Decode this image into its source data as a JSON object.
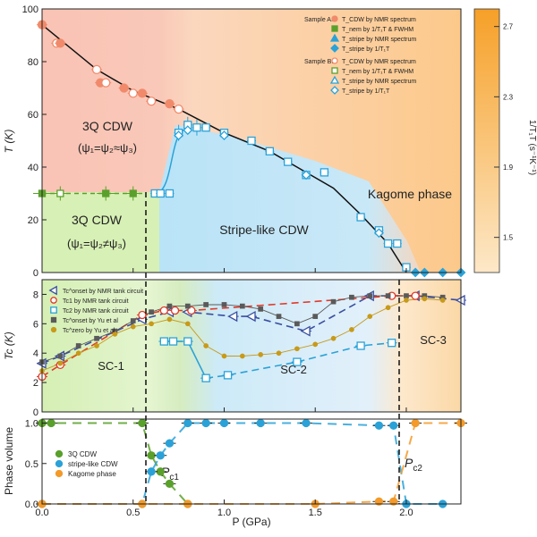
{
  "xaxis": {
    "label": "P (GPa)",
    "ticks": [
      "0.0",
      "0.5",
      "1.0",
      "1.5",
      "2.0"
    ],
    "tick_values": [
      0,
      0.5,
      1.0,
      1.5,
      2.0
    ],
    "range": [
      0,
      2.3
    ]
  },
  "colorbar": {
    "label": "1/T₁T (s⁻¹K⁻¹)",
    "ticks": [
      "2.7",
      "2.3",
      "1.9",
      "1.5"
    ],
    "tick_values": [
      2.7,
      2.3,
      1.9,
      1.5
    ],
    "range": [
      1.3,
      2.8
    ],
    "color_low": "#fde8c8",
    "color_high": "#f6a028"
  },
  "colors": {
    "salmon": "#f08a6a",
    "green": "#5aa02c",
    "blue": "#2aa2d8",
    "orange": "#f39a2a",
    "navy": "#3a4fa0",
    "red": "#e03a2a",
    "gray": "#5a5a5a",
    "gold": "#c79a1a"
  },
  "chart_data": [
    {
      "type": "scatter",
      "panel": "phase-diagram",
      "ylabel": "T (K)",
      "yticks": [
        "0",
        "20",
        "40",
        "60",
        "80",
        "100"
      ],
      "ylim": [
        0,
        100
      ],
      "region_labels": {
        "cdw3q_a": "3Q CDW",
        "cdw3q_a_sub": "(ψ₁=ψ₂≈ψ₃)",
        "cdw3q_b": "3Q CDW",
        "cdw3q_b_sub": "(ψ₁=ψ₂≠ψ₃)",
        "stripe": "Stripe-like CDW",
        "kagome": "Kagome phase"
      },
      "legend": {
        "sample_a": "Sample A:",
        "sample_b": "Sample B:",
        "entries_a": [
          "T_CDW by NMR spectrum",
          "T_nem by 1/T₁T & FWHM",
          "T_stripe by NMR spectrum",
          "T_stripe by 1/T₁T"
        ],
        "entries_b": [
          "T_CDW by NMR spectrum",
          "T_nem by 1/T₁T & FWHM",
          "T_stripe by NMR spectrum",
          "T_stripe by 1/T₁T"
        ]
      },
      "series": [
        {
          "name": "T_CDW",
          "points": [
            [
              0.0,
              94
            ],
            [
              0.08,
              87
            ],
            [
              0.1,
              87
            ],
            [
              0.3,
              77
            ],
            [
              0.32,
              72
            ],
            [
              0.35,
              72
            ],
            [
              0.45,
              70
            ],
            [
              0.5,
              68
            ],
            [
              0.55,
              68
            ],
            [
              0.6,
              65
            ],
            [
              0.7,
              64
            ],
            [
              0.75,
              62
            ]
          ]
        },
        {
          "name": "T_nem",
          "points": [
            [
              0.0,
              30
            ],
            [
              0.1,
              30
            ],
            [
              0.35,
              30
            ],
            [
              0.5,
              30
            ]
          ]
        },
        {
          "name": "T_stripe (spectrum)",
          "points": [
            [
              0.62,
              30
            ],
            [
              0.65,
              30
            ],
            [
              0.7,
              30
            ],
            [
              0.75,
              53
            ],
            [
              0.8,
              56
            ],
            [
              0.85,
              55
            ],
            [
              0.9,
              55
            ],
            [
              1.0,
              53
            ],
            [
              1.15,
              50
            ],
            [
              1.25,
              46
            ],
            [
              1.35,
              42
            ],
            [
              1.45,
              37
            ],
            [
              1.55,
              38
            ],
            [
              1.75,
              21
            ],
            [
              1.85,
              16
            ],
            [
              1.9,
              11
            ],
            [
              1.95,
              11
            ],
            [
              2.0,
              2
            ]
          ]
        },
        {
          "name": "T_stripe (1/T₁T)",
          "points": [
            [
              0.75,
              52
            ],
            [
              0.8,
              54
            ],
            [
              1.0,
              52
            ],
            [
              1.45,
              37
            ],
            [
              1.85,
              15
            ],
            [
              2.05,
              0
            ],
            [
              2.1,
              0
            ],
            [
              2.2,
              0
            ],
            [
              2.3,
              0
            ]
          ]
        }
      ]
    },
    {
      "type": "line",
      "panel": "superconductivity",
      "ylabel": "Tc (K)",
      "yticks": [
        "0",
        "2",
        "4",
        "6",
        "8"
      ],
      "ylim": [
        0,
        9
      ],
      "region_labels": {
        "sc1": "SC-1",
        "sc2": "SC-2",
        "sc3": "SC-3"
      },
      "legend": [
        "Tc^onset by NMR tank circuit",
        "Tc1 by NMR tank circuit",
        "Tc2 by NMR tank circuit",
        "Tc^onset by Yu et al",
        "Tc^zero by Yu et al"
      ],
      "series": [
        {
          "name": "Tc^onset by NMR tank circuit",
          "points": [
            [
              0.0,
              3.3
            ],
            [
              0.1,
              3.8
            ],
            [
              0.55,
              6.3
            ],
            [
              0.7,
              6.8
            ],
            [
              0.8,
              6.8
            ],
            [
              1.05,
              6.5
            ],
            [
              1.15,
              6.5
            ],
            [
              1.45,
              5.5
            ],
            [
              1.8,
              7.9
            ],
            [
              2.05,
              7.9
            ],
            [
              2.3,
              7.6
            ]
          ]
        },
        {
          "name": "Tc1 by NMR tank circuit",
          "points": [
            [
              0.0,
              2.4
            ],
            [
              0.1,
              3.2
            ],
            [
              0.55,
              6.6
            ],
            [
              0.67,
              6.9
            ],
            [
              0.73,
              6.9
            ],
            [
              0.82,
              6.9
            ],
            [
              1.92,
              7.9
            ],
            [
              2.05,
              7.9
            ]
          ]
        },
        {
          "name": "Tc2 by NMR tank circuit",
          "points": [
            [
              0.67,
              4.8
            ],
            [
              0.72,
              4.8
            ],
            [
              0.8,
              4.8
            ],
            [
              0.9,
              2.3
            ],
            [
              1.02,
              2.5
            ],
            [
              1.4,
              3.4
            ],
            [
              1.75,
              4.5
            ],
            [
              1.92,
              4.7
            ]
          ]
        },
        {
          "name": "Tc^onset by Yu et al",
          "points": [
            [
              0.0,
              3.4
            ],
            [
              0.1,
              3.8
            ],
            [
              0.2,
              4.5
            ],
            [
              0.3,
              5.0
            ],
            [
              0.4,
              5.5
            ],
            [
              0.5,
              6.2
            ],
            [
              0.6,
              6.8
            ],
            [
              0.7,
              7.2
            ],
            [
              0.8,
              7.2
            ],
            [
              0.9,
              7.3
            ],
            [
              1.0,
              7.3
            ],
            [
              1.1,
              7.2
            ],
            [
              1.2,
              7.0
            ],
            [
              1.3,
              6.5
            ],
            [
              1.4,
              6.0
            ],
            [
              1.5,
              6.5
            ],
            [
              1.6,
              7.5
            ],
            [
              1.7,
              7.8
            ],
            [
              1.8,
              7.9
            ],
            [
              1.9,
              7.9
            ],
            [
              2.0,
              7.9
            ],
            [
              2.1,
              7.9
            ],
            [
              2.2,
              7.8
            ]
          ]
        },
        {
          "name": "Tc^zero by Yu et al",
          "points": [
            [
              0.0,
              2.8
            ],
            [
              0.1,
              3.3
            ],
            [
              0.2,
              4.0
            ],
            [
              0.3,
              4.5
            ],
            [
              0.4,
              5.3
            ],
            [
              0.5,
              5.8
            ],
            [
              0.6,
              6.0
            ],
            [
              0.7,
              6.3
            ],
            [
              0.8,
              6.0
            ],
            [
              0.9,
              4.5
            ],
            [
              1.0,
              3.8
            ],
            [
              1.1,
              3.8
            ],
            [
              1.2,
              3.9
            ],
            [
              1.3,
              4.0
            ],
            [
              1.4,
              4.3
            ],
            [
              1.5,
              4.6
            ],
            [
              1.6,
              5.0
            ],
            [
              1.7,
              5.6
            ],
            [
              1.8,
              6.5
            ],
            [
              1.9,
              7.1
            ],
            [
              2.0,
              7.6
            ],
            [
              2.1,
              7.7
            ],
            [
              2.2,
              7.6
            ]
          ]
        }
      ]
    },
    {
      "type": "line",
      "panel": "phase-volume",
      "ylabel": "Phase volume",
      "yticks": [
        "0.0",
        "0.5",
        "1.0"
      ],
      "ylim": [
        0,
        1.05
      ],
      "annotations": {
        "pc1": "P",
        "pc1_sub": "c1",
        "pc2": "P",
        "pc2_sub": "c2"
      },
      "legend": [
        "3Q CDW",
        "stripe-like CDW",
        "Kagome phase"
      ],
      "series": [
        {
          "name": "3Q CDW",
          "points": [
            [
              0.0,
              1.0
            ],
            [
              0.05,
              1.0
            ],
            [
              0.55,
              1.0
            ],
            [
              0.6,
              0.6
            ],
            [
              0.65,
              0.4
            ],
            [
              0.7,
              0.25
            ],
            [
              0.8,
              0.0
            ]
          ]
        },
        {
          "name": "stripe-like CDW",
          "points": [
            [
              0.0,
              0.0
            ],
            [
              0.55,
              0.0
            ],
            [
              0.6,
              0.4
            ],
            [
              0.65,
              0.6
            ],
            [
              0.7,
              0.75
            ],
            [
              0.8,
              1.0
            ],
            [
              0.9,
              1.0
            ],
            [
              1.0,
              1.0
            ],
            [
              1.2,
              1.0
            ],
            [
              1.45,
              1.0
            ],
            [
              1.85,
              0.97
            ],
            [
              1.93,
              0.97
            ],
            [
              2.0,
              0.0
            ],
            [
              2.2,
              0.0
            ]
          ]
        },
        {
          "name": "Kagome phase",
          "points": [
            [
              0.0,
              0.0
            ],
            [
              0.55,
              0.0
            ],
            [
              0.8,
              0.0
            ],
            [
              1.5,
              0.0
            ],
            [
              1.85,
              0.03
            ],
            [
              1.93,
              0.03
            ],
            [
              2.05,
              1.0
            ],
            [
              2.3,
              1.0
            ]
          ]
        }
      ]
    }
  ]
}
